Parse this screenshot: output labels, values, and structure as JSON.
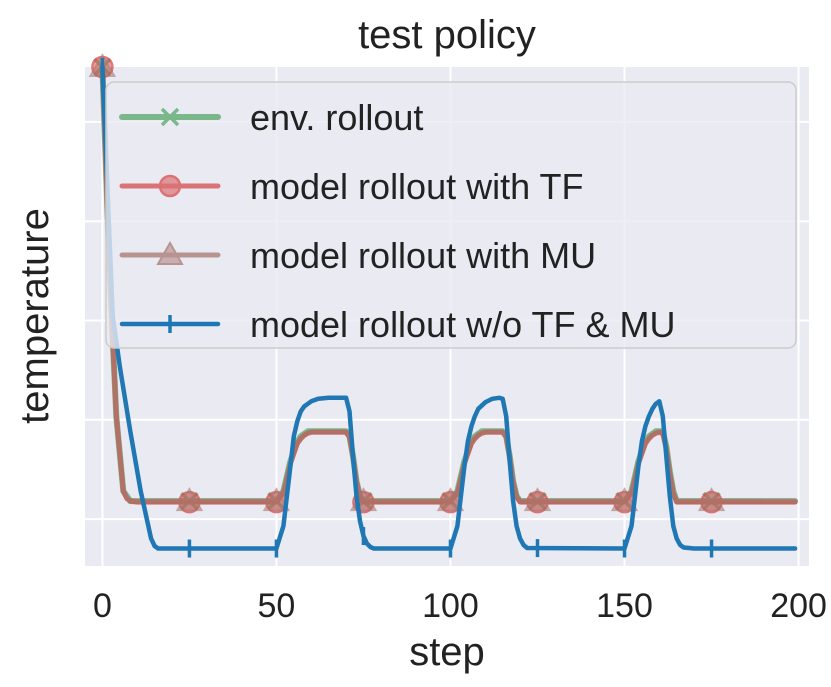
{
  "chart_data": {
    "type": "line",
    "title": "test policy",
    "xlabel": "step",
    "ylabel": "temperature",
    "xlim": [
      -5,
      203
    ],
    "ylim": [
      0,
      1
    ],
    "x_ticks": [
      0,
      50,
      100,
      150,
      200
    ],
    "x_tick_labels": [
      "0",
      "50",
      "100",
      "150",
      "200"
    ],
    "y_tick_labels_shown": false,
    "grid": true,
    "legend_position": "top",
    "series": [
      {
        "name": "env. rollout",
        "color": "#55a868",
        "marker": "x",
        "x": [
          0,
          2,
          4,
          6,
          7,
          8,
          10,
          25,
          50,
          52,
          53,
          54,
          55,
          56,
          57,
          58,
          59,
          60,
          70,
          71,
          72,
          73,
          74,
          75,
          100,
          102,
          103,
          104,
          105,
          106,
          107,
          108,
          109,
          110,
          115,
          116,
          117,
          118,
          119,
          120,
          150,
          152,
          153,
          154,
          155,
          156,
          157,
          158,
          159,
          160,
          161,
          162,
          163,
          164,
          165,
          199
        ],
        "y": [
          1.0,
          0.6,
          0.3,
          0.15,
          0.14,
          0.13,
          0.13,
          0.13,
          0.13,
          0.15,
          0.18,
          0.21,
          0.23,
          0.25,
          0.26,
          0.265,
          0.27,
          0.27,
          0.27,
          0.26,
          0.22,
          0.17,
          0.14,
          0.13,
          0.13,
          0.15,
          0.18,
          0.21,
          0.23,
          0.25,
          0.26,
          0.265,
          0.27,
          0.27,
          0.27,
          0.26,
          0.22,
          0.17,
          0.14,
          0.13,
          0.13,
          0.15,
          0.18,
          0.21,
          0.23,
          0.25,
          0.26,
          0.265,
          0.27,
          0.27,
          0.27,
          0.24,
          0.19,
          0.15,
          0.13,
          0.13
        ]
      },
      {
        "name": "model rollout with TF",
        "color": "#d64b4b",
        "marker": "o",
        "x": [
          0,
          2,
          4,
          6,
          7,
          8,
          10,
          25,
          50,
          52,
          53,
          54,
          55,
          56,
          57,
          58,
          59,
          60,
          70,
          71,
          72,
          73,
          74,
          75,
          100,
          102,
          103,
          104,
          105,
          106,
          107,
          108,
          109,
          110,
          115,
          116,
          117,
          118,
          119,
          120,
          150,
          152,
          153,
          154,
          155,
          156,
          157,
          158,
          159,
          160,
          161,
          162,
          163,
          164,
          165,
          199
        ],
        "y": [
          1.0,
          0.6,
          0.3,
          0.15,
          0.135,
          0.13,
          0.128,
          0.128,
          0.128,
          0.145,
          0.175,
          0.205,
          0.225,
          0.245,
          0.255,
          0.262,
          0.266,
          0.268,
          0.268,
          0.258,
          0.218,
          0.168,
          0.138,
          0.128,
          0.128,
          0.145,
          0.175,
          0.205,
          0.225,
          0.245,
          0.255,
          0.262,
          0.266,
          0.268,
          0.268,
          0.258,
          0.218,
          0.168,
          0.138,
          0.128,
          0.128,
          0.145,
          0.175,
          0.205,
          0.225,
          0.245,
          0.255,
          0.262,
          0.266,
          0.268,
          0.265,
          0.235,
          0.185,
          0.145,
          0.128,
          0.128
        ]
      },
      {
        "name": "model rollout with MU",
        "color": "#a8786f",
        "marker": "^",
        "x": [
          0,
          2,
          4,
          6,
          7,
          8,
          10,
          25,
          50,
          52,
          53,
          54,
          55,
          56,
          57,
          58,
          59,
          60,
          70,
          71,
          72,
          73,
          74,
          75,
          100,
          102,
          103,
          104,
          105,
          106,
          107,
          108,
          109,
          110,
          115,
          116,
          117,
          118,
          119,
          120,
          150,
          152,
          153,
          154,
          155,
          156,
          157,
          158,
          159,
          160,
          161,
          162,
          163,
          164,
          165,
          199
        ],
        "y": [
          1.0,
          0.6,
          0.3,
          0.15,
          0.136,
          0.131,
          0.13,
          0.13,
          0.13,
          0.146,
          0.176,
          0.206,
          0.226,
          0.246,
          0.256,
          0.263,
          0.267,
          0.269,
          0.269,
          0.259,
          0.219,
          0.169,
          0.139,
          0.13,
          0.13,
          0.146,
          0.176,
          0.206,
          0.226,
          0.246,
          0.256,
          0.263,
          0.267,
          0.269,
          0.269,
          0.259,
          0.219,
          0.169,
          0.139,
          0.13,
          0.13,
          0.146,
          0.176,
          0.206,
          0.226,
          0.246,
          0.256,
          0.263,
          0.267,
          0.269,
          0.266,
          0.236,
          0.186,
          0.146,
          0.13,
          0.13
        ]
      },
      {
        "name": "model rollout w/o TF & MU",
        "color": "#1f77b4",
        "marker": "|",
        "x": [
          0,
          3,
          5,
          8,
          11,
          14,
          15,
          16,
          25,
          50,
          52,
          53,
          54,
          55,
          56,
          57,
          58,
          60,
          62,
          65,
          70,
          71,
          72,
          73,
          74,
          75,
          76,
          77,
          78,
          100,
          102,
          103,
          104,
          105,
          106,
          107,
          108,
          110,
          112,
          114,
          115,
          116,
          117,
          118,
          119,
          120,
          121,
          122,
          150,
          152,
          153,
          154,
          155,
          156,
          157,
          158,
          159,
          160,
          161,
          162,
          163,
          164,
          165,
          166,
          167,
          170,
          199
        ],
        "y": [
          1.0,
          0.5,
          0.4,
          0.27,
          0.15,
          0.055,
          0.04,
          0.035,
          0.035,
          0.035,
          0.08,
          0.14,
          0.2,
          0.26,
          0.29,
          0.31,
          0.32,
          0.33,
          0.335,
          0.337,
          0.337,
          0.31,
          0.22,
          0.14,
          0.09,
          0.06,
          0.045,
          0.038,
          0.035,
          0.035,
          0.08,
          0.14,
          0.2,
          0.25,
          0.28,
          0.3,
          0.315,
          0.328,
          0.335,
          0.337,
          0.335,
          0.3,
          0.21,
          0.13,
          0.08,
          0.055,
          0.042,
          0.036,
          0.035,
          0.08,
          0.14,
          0.2,
          0.25,
          0.28,
          0.3,
          0.315,
          0.325,
          0.33,
          0.3,
          0.22,
          0.14,
          0.08,
          0.055,
          0.042,
          0.037,
          0.035,
          0.035
        ]
      }
    ]
  }
}
